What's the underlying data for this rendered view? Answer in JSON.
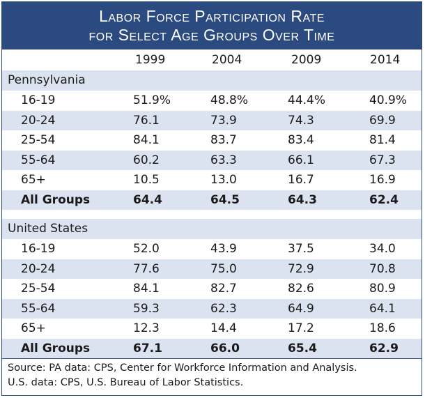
{
  "title": {
    "line1": "Labor Force Participation Rate",
    "line2": "for Select Age Groups Over Time"
  },
  "years": [
    "1999",
    "2004",
    "2009",
    "2014"
  ],
  "pa": {
    "label": "Pennsylvania",
    "rows": [
      {
        "group": "16-19",
        "v": [
          "51.9%",
          "48.8%",
          "44.4%",
          "40.9%"
        ]
      },
      {
        "group": "20-24",
        "v": [
          "76.1",
          "73.9",
          "74.3",
          "69.9"
        ]
      },
      {
        "group": "25-54",
        "v": [
          "84.1",
          "83.7",
          "83.4",
          "81.4"
        ]
      },
      {
        "group": "55-64",
        "v": [
          "60.2",
          "63.3",
          "66.1",
          "67.3"
        ]
      },
      {
        "group": "65+",
        "v": [
          "10.5",
          "13.0",
          "16.7",
          "16.9"
        ]
      },
      {
        "group": "All Groups",
        "v": [
          "64.4",
          "64.5",
          "64.3",
          "62.4"
        ]
      }
    ]
  },
  "us": {
    "label": "United States",
    "rows": [
      {
        "group": "16-19",
        "v": [
          "52.0",
          "43.9",
          "37.5",
          "34.0"
        ]
      },
      {
        "group": "20-24",
        "v": [
          "77.6",
          "75.0",
          "72.9",
          "70.8"
        ]
      },
      {
        "group": "25-54",
        "v": [
          "84.1",
          "82.7",
          "82.6",
          "80.9"
        ]
      },
      {
        "group": "55-64",
        "v": [
          "59.3",
          "62.3",
          "64.9",
          "64.1"
        ]
      },
      {
        "group": "65+",
        "v": [
          "12.3",
          "14.4",
          "17.2",
          "18.6"
        ]
      },
      {
        "group": "All Groups",
        "v": [
          "67.1",
          "66.0",
          "65.4",
          "62.9"
        ]
      }
    ]
  },
  "source": {
    "line1": "Source: PA data: CPS, Center for Workforce Information and Analysis.",
    "line2": "U.S. data: CPS, U.S. Bureau of Labor Statistics."
  },
  "colors": {
    "header": "#2b4a80",
    "row_shade": "#dce3f0"
  }
}
